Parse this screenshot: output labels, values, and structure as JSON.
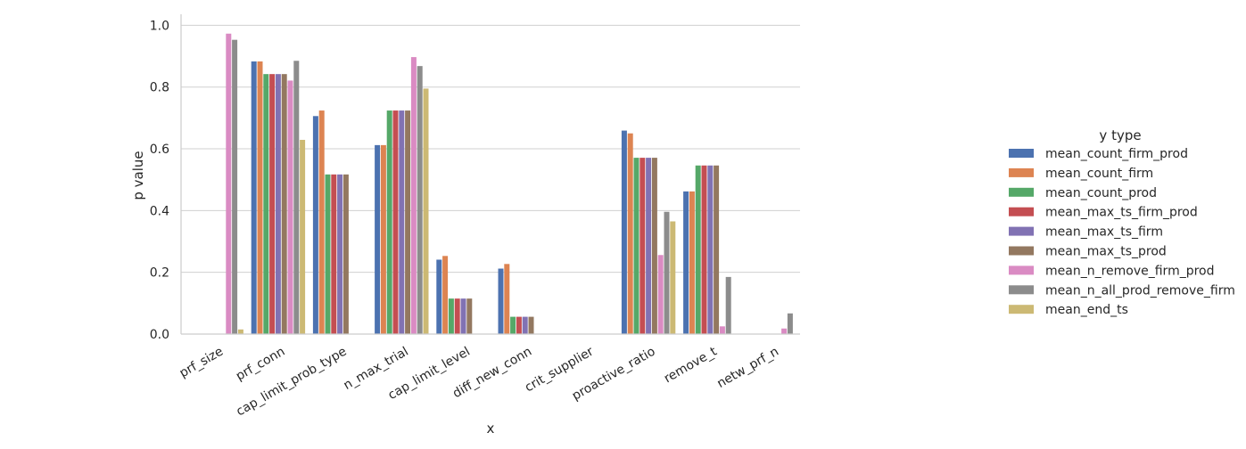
{
  "chart_data": {
    "type": "bar",
    "xlabel": "x",
    "ylabel": "p value",
    "ylim": [
      0,
      1.03
    ],
    "yticks": [
      0.0,
      0.2,
      0.4,
      0.6,
      0.8,
      1.0
    ],
    "ytick_labels": [
      "0.0",
      "0.2",
      "0.4",
      "0.6",
      "0.8",
      "1.0"
    ],
    "grid": "horizontal",
    "legend_title": "y type",
    "legend_position": "right",
    "categories": [
      "prf_size",
      "prf_conn",
      "cap_limit_prob_type",
      "n_max_trial",
      "cap_limit_level",
      "diff_new_conn",
      "crit_supplier",
      "proactive_ratio",
      "remove_t",
      "netw_prf_n"
    ],
    "series": [
      {
        "name": "mean_count_firm_prod",
        "color": "#4c72b0",
        "values": [
          0,
          0.883,
          0.706,
          0.612,
          0.241,
          0.212,
          0,
          0.659,
          0.462,
          0
        ]
      },
      {
        "name": "mean_count_firm",
        "color": "#dd8452",
        "values": [
          0,
          0.883,
          0.724,
          0.612,
          0.253,
          0.227,
          0,
          0.65,
          0.462,
          0
        ]
      },
      {
        "name": "mean_count_prod",
        "color": "#55a868",
        "values": [
          0,
          0.842,
          0.517,
          0.724,
          0.115,
          0.056,
          0,
          0.571,
          0.546,
          0
        ]
      },
      {
        "name": "mean_max_ts_firm_prod",
        "color": "#c44e52",
        "values": [
          0,
          0.842,
          0.517,
          0.724,
          0.115,
          0.056,
          0,
          0.571,
          0.546,
          0
        ]
      },
      {
        "name": "mean_max_ts_firm",
        "color": "#8172b3",
        "values": [
          0,
          0.842,
          0.517,
          0.724,
          0.115,
          0.056,
          0,
          0.571,
          0.546,
          0
        ]
      },
      {
        "name": "mean_max_ts_prod",
        "color": "#937860",
        "values": [
          0,
          0.842,
          0.517,
          0.724,
          0.115,
          0.056,
          0,
          0.571,
          0.546,
          0
        ]
      },
      {
        "name": "mean_n_remove_firm_prod",
        "color": "#da8bc3",
        "values": [
          0.973,
          0.821,
          0,
          0.897,
          0,
          0,
          0,
          0.256,
          0.025,
          0.018
        ]
      },
      {
        "name": "mean_n_all_prod_remove_firm",
        "color": "#8c8c8c",
        "values": [
          0.953,
          0.885,
          0,
          0.868,
          0,
          0,
          0,
          0.396,
          0.185,
          0.067
        ]
      },
      {
        "name": "mean_end_ts",
        "color": "#ccb974",
        "values": [
          0.015,
          0.629,
          0,
          0.795,
          0,
          0,
          0,
          0.365,
          0,
          0
        ]
      }
    ]
  }
}
